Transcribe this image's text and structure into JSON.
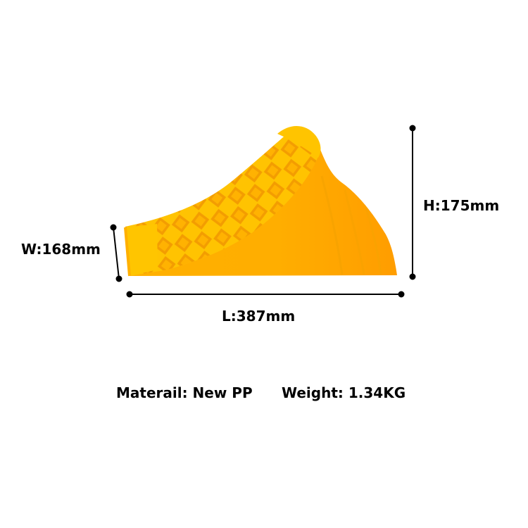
{
  "product": {
    "icon": "wheel-chock-icon",
    "color": "#FFB319",
    "rib_color": "#FFC92E"
  },
  "dimensions": {
    "width_label": "W:168mm",
    "height_label": "H:175mm",
    "length_label": "L:387mm",
    "line_color": "#000000"
  },
  "specs": {
    "material": "Materail: New PP",
    "weight": "Weight: 1.34KG"
  }
}
